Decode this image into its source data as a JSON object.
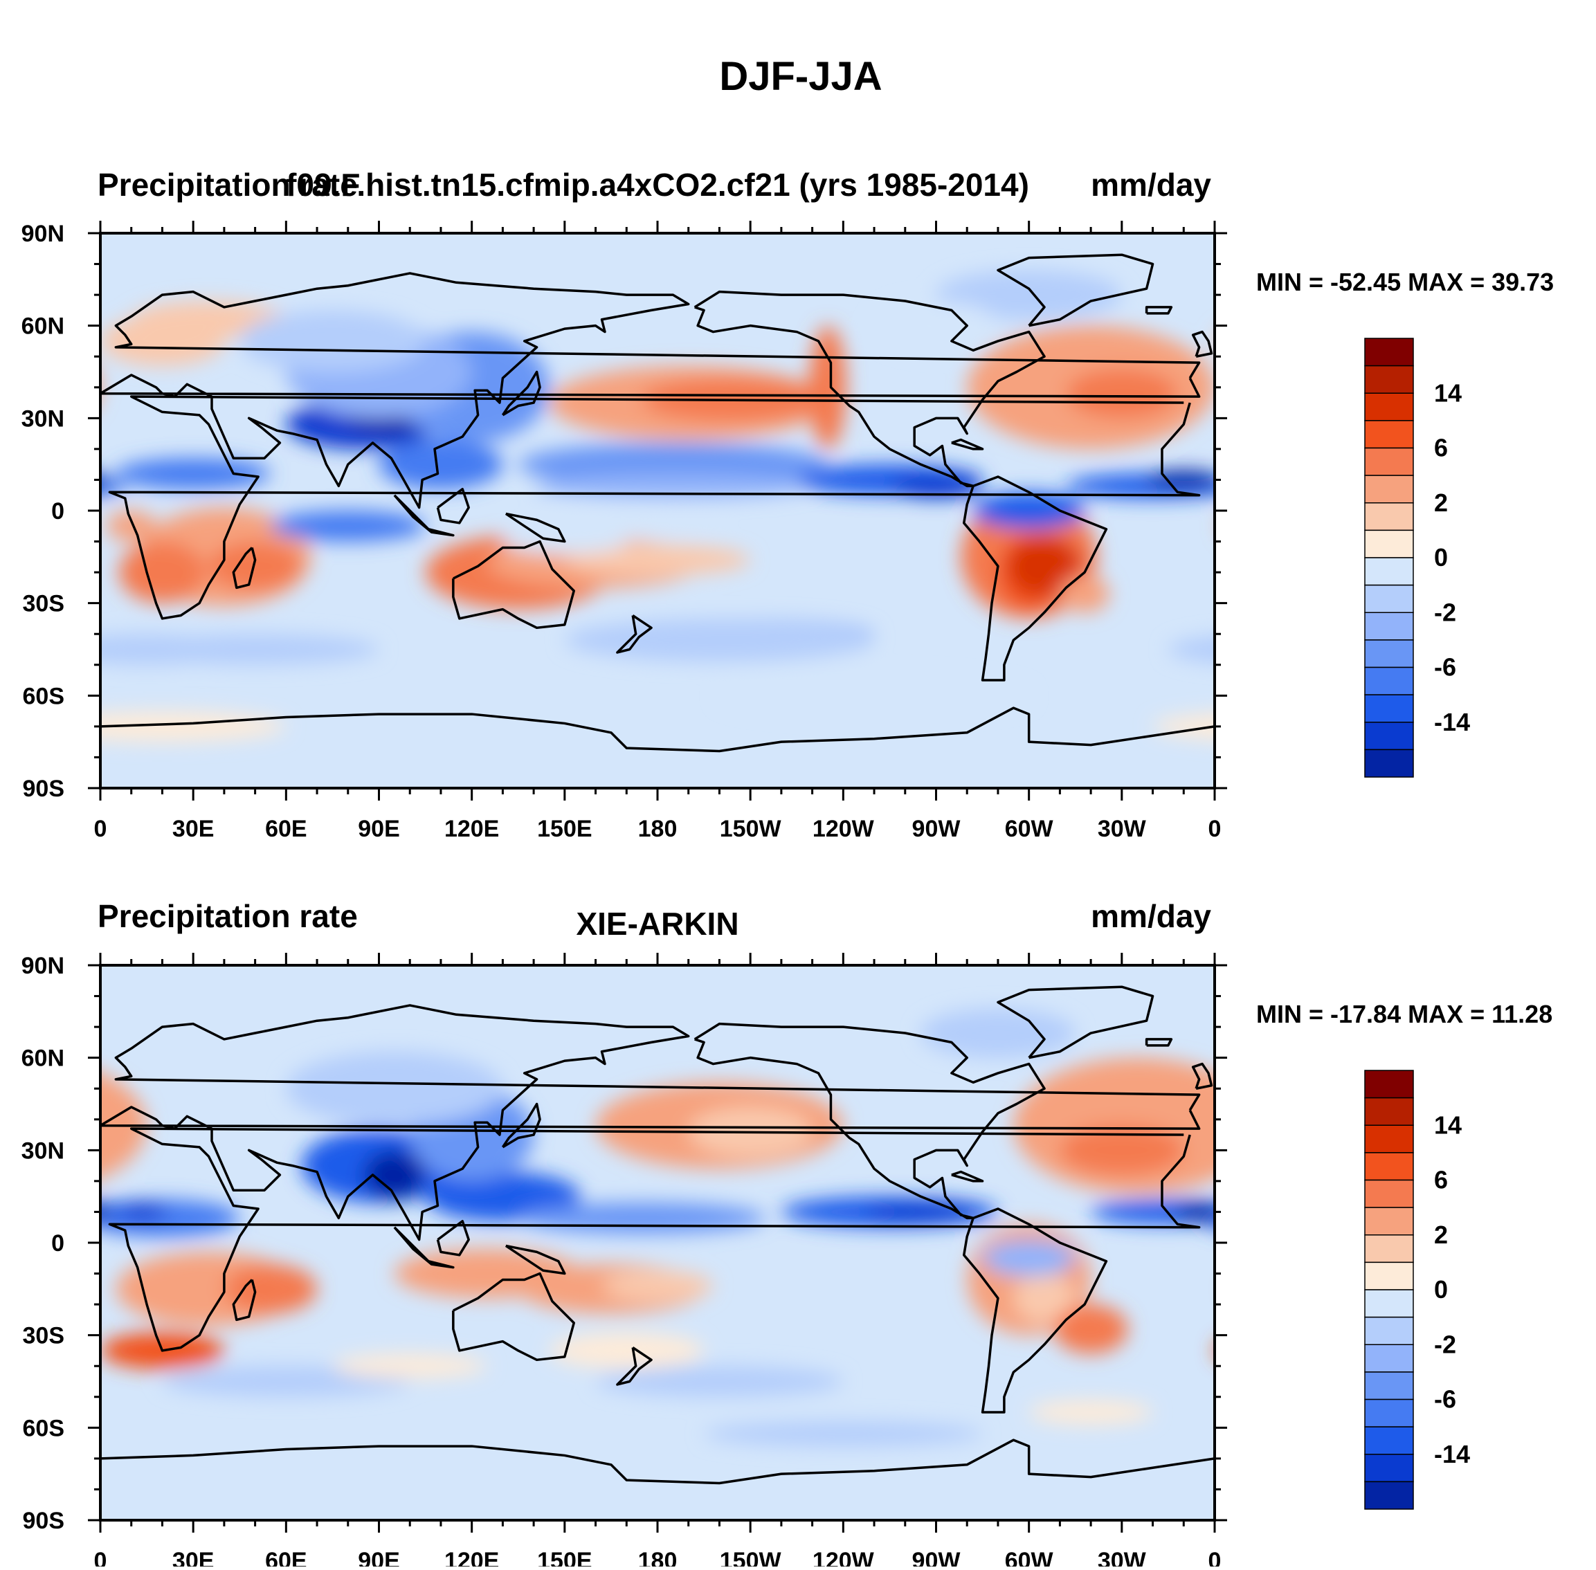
{
  "figure": {
    "title": "DJF-JJA"
  },
  "lon_labels": [
    "0",
    "30E",
    "60E",
    "90E",
    "120E",
    "150E",
    "180",
    "150W",
    "120W",
    "90W",
    "60W",
    "30W",
    "0"
  ],
  "lat_labels": [
    "90N",
    "60N",
    "30N",
    "0",
    "30S",
    "60S",
    "90S"
  ],
  "colorbar": {
    "labels": [
      "14",
      "6",
      "2",
      "0",
      "-2",
      "-6",
      "-14"
    ],
    "colors": [
      "#800000",
      "#b52000",
      "#d83000",
      "#f2531e",
      "#f47a50",
      "#f6a27e",
      "#f9c9ad",
      "#fdebd9",
      "#d4e6fb",
      "#b4cefb",
      "#92b3fa",
      "#6996f5",
      "#457bf2",
      "#1e5bea",
      "#0a3bd0",
      "#0324a4",
      "#00137a"
    ]
  },
  "panels": [
    {
      "left_title": "Precipitation rate",
      "center_title": "f09.F.hist.tn15.cfmip.a4xCO2.cf21 (yrs 1985-2014)",
      "right_title": "mm/day",
      "stats": "MIN = -52.45 MAX =  39.73",
      "field_min": -52.45,
      "field_max": 39.73
    },
    {
      "left_title": "Precipitation rate",
      "center_title": "XIE-ARKIN",
      "right_title": "mm/day",
      "stats": "MIN = -17.84 MAX =  11.28",
      "field_min": -17.84,
      "field_max": 11.28
    }
  ]
}
